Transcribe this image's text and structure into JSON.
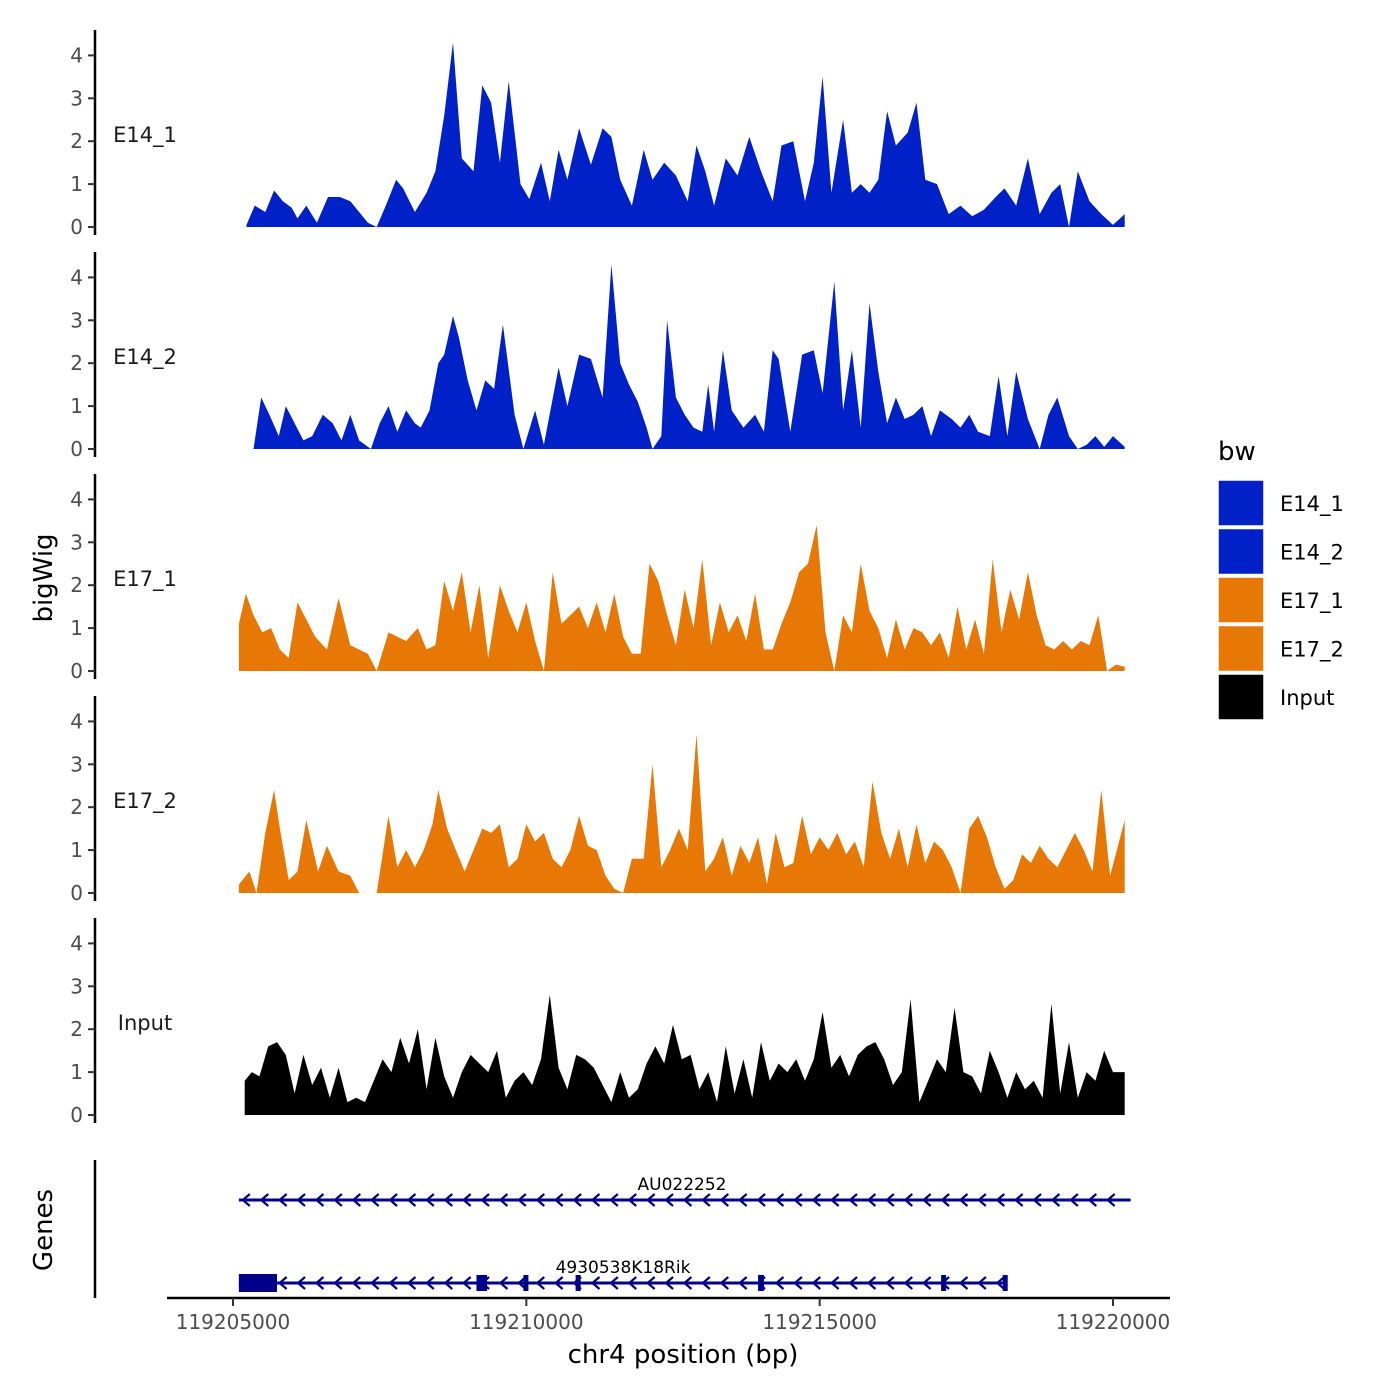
{
  "chart_data": {
    "type": "area",
    "title": "",
    "xlabel": "chr4 position (bp)",
    "ylabel": "bigWig",
    "genes_label": "Genes",
    "xlim": [
      119204800,
      119220600
    ],
    "xticks": [
      119205000,
      119210000,
      119215000,
      119220000
    ],
    "xtick_labels": [
      "119205000",
      "119210000",
      "119215000",
      "119220000"
    ],
    "ylim": [
      0,
      4.6
    ],
    "yticks": [
      0,
      1,
      2,
      3,
      4
    ],
    "ytick_labels": [
      "0",
      "1",
      "2",
      "3",
      "4"
    ],
    "legend": {
      "title": "bw",
      "position": "right",
      "entries": [
        {
          "label": "E14_1",
          "color": "#0020c8"
        },
        {
          "label": "E14_2",
          "color": "#0020c8"
        },
        {
          "label": "E17_1",
          "color": "#e87806"
        },
        {
          "label": "E17_2",
          "color": "#e87806"
        },
        {
          "label": "Input",
          "color": "#000000"
        }
      ]
    },
    "series": [
      {
        "name": "E14_1",
        "color": "#0020c8",
        "x": [
          119205230,
          119205370,
          119205550,
          119205700,
          119205850,
          119206000,
          119206100,
          119206250,
          119206430,
          119206620,
          119206820,
          119207000,
          119207300,
          119207450,
          119207620,
          119207780,
          119207900,
          119208100,
          119208300,
          119208450,
          119208600,
          119208750,
          119208900,
          119209100,
          119209250,
          119209400,
          119209550,
          119209700,
          119209900,
          119210050,
          119210250,
          119210400,
          119210550,
          119210700,
          119210900,
          119211100,
          119211300,
          119211450,
          119211600,
          119211800,
          119212000,
          119212150,
          119212350,
          119212550,
          119212750,
          119212900,
          119213050,
          119213200,
          119213400,
          119213600,
          119213800,
          119214000,
          119214200,
          119214350,
          119214550,
          119214750,
          119214900,
          119215050,
          119215200,
          119215400,
          119215550,
          119215700,
          119215850,
          119216000,
          119216150,
          119216300,
          119216500,
          119216650,
          119216800,
          119217000,
          119217200,
          119217400,
          119217600,
          119217800,
          119218000,
          119218150,
          119218350,
          119218550,
          119218750,
          119218950,
          119219100,
          119219250,
          119219400,
          119219600,
          119219800,
          119220000,
          119220200
        ],
        "values": [
          0.05,
          0.5,
          0.35,
          0.85,
          0.6,
          0.45,
          0.2,
          0.5,
          0.1,
          0.7,
          0.7,
          0.6,
          0.1,
          0.0,
          0.55,
          1.1,
          0.9,
          0.35,
          0.8,
          1.3,
          2.6,
          4.3,
          1.6,
          1.3,
          3.3,
          2.9,
          1.5,
          3.4,
          1.0,
          0.65,
          1.5,
          0.6,
          1.8,
          1.1,
          2.3,
          1.45,
          2.3,
          2.1,
          1.1,
          0.5,
          1.8,
          1.1,
          1.5,
          1.2,
          0.6,
          1.9,
          1.3,
          0.5,
          1.6,
          1.2,
          2.1,
          1.3,
          0.6,
          1.9,
          2.0,
          0.6,
          1.5,
          3.5,
          0.8,
          2.5,
          0.8,
          1.0,
          0.8,
          1.1,
          2.7,
          1.9,
          2.2,
          2.9,
          1.1,
          1.0,
          0.3,
          0.5,
          0.25,
          0.4,
          0.7,
          0.9,
          0.5,
          1.6,
          0.3,
          0.8,
          1.0,
          0.0,
          1.3,
          0.6,
          0.3,
          0.05,
          0.3
        ]
      },
      {
        "name": "E14_2",
        "color": "#0020c8",
        "x": [
          119205350,
          119205480,
          119205620,
          119205780,
          119205900,
          119206050,
          119206200,
          119206350,
          119206530,
          119206700,
          119206850,
          119207000,
          119207150,
          119207350,
          119207500,
          119207650,
          119207800,
          119207950,
          119208100,
          119208200,
          119208350,
          119208500,
          119208600,
          119208750,
          119208850,
          119209000,
          119209150,
          119209300,
          119209450,
          119209600,
          119209800,
          119209950,
          119210150,
          119210300,
          119210550,
          119210700,
          119210900,
          119211100,
          119211300,
          119211450,
          119211600,
          119211750,
          119211900,
          119212050,
          119212150,
          119212300,
          119212400,
          119212550,
          119212700,
          119212850,
          119213000,
          119213100,
          119213200,
          119213350,
          119213500,
          119213700,
          119213900,
          119214050,
          119214200,
          119214300,
          119214500,
          119214700,
          119214900,
          119215050,
          119215250,
          119215400,
          119215550,
          119215700,
          119215850,
          119216000,
          119216150,
          119216300,
          119216450,
          119216600,
          119216750,
          119216900,
          119217050,
          119217250,
          119217400,
          119217550,
          119217700,
          119217900,
          119218050,
          119218200,
          119218350,
          119218550,
          119218750,
          119218900,
          119219050,
          119219250,
          119219400,
          119219550,
          119219700,
          119219850,
          119220000,
          119220200
        ],
        "values": [
          0.0,
          1.2,
          0.8,
          0.3,
          1.0,
          0.6,
          0.2,
          0.3,
          0.8,
          0.6,
          0.2,
          0.8,
          0.2,
          0.0,
          0.6,
          1.0,
          0.4,
          0.9,
          0.6,
          0.5,
          0.9,
          2.0,
          2.2,
          3.1,
          2.6,
          1.6,
          0.9,
          1.6,
          1.4,
          2.9,
          0.8,
          0.0,
          0.9,
          0.1,
          1.9,
          1.0,
          2.2,
          2.1,
          1.2,
          4.3,
          2.0,
          1.5,
          1.1,
          0.5,
          0.0,
          0.3,
          3.0,
          1.2,
          0.8,
          0.5,
          0.4,
          1.5,
          0.4,
          2.3,
          0.9,
          0.5,
          0.8,
          0.4,
          2.3,
          2.1,
          0.4,
          2.2,
          2.3,
          1.3,
          3.9,
          0.9,
          2.3,
          0.5,
          3.4,
          1.8,
          0.6,
          1.2,
          0.7,
          0.8,
          1.0,
          0.3,
          0.9,
          0.7,
          0.5,
          0.8,
          0.4,
          0.3,
          1.7,
          0.3,
          1.8,
          0.7,
          0.0,
          0.8,
          1.2,
          0.3,
          0.0,
          0.1,
          0.3,
          0.05,
          0.3,
          0.05
        ]
      },
      {
        "name": "E17_1",
        "color": "#e87806",
        "x": [
          119205100,
          119205220,
          119205350,
          119205500,
          119205650,
          119205800,
          119205950,
          119206100,
          119206250,
          119206400,
          119206600,
          119206800,
          119207000,
          119207150,
          119207300,
          119207450,
          119207650,
          119207800,
          119207950,
          119208150,
          119208300,
          119208450,
          119208600,
          119208750,
          119208900,
          119209050,
          119209200,
          119209350,
          119209550,
          119209700,
          119209850,
          119210000,
          119210150,
          119210300,
          119210450,
          119210600,
          119210750,
          119210900,
          119211050,
          119211200,
          119211350,
          119211500,
          119211650,
          119211800,
          119211950,
          119212100,
          119212250,
          119212400,
          119212550,
          119212700,
          119212850,
          119213000,
          119213150,
          119213300,
          119213450,
          119213600,
          119213750,
          119213900,
          119214050,
          119214200,
          119214350,
          119214500,
          119214650,
          119214800,
          119214950,
          119215100,
          119215250,
          119215400,
          119215550,
          119215700,
          119215850,
          119216000,
          119216150,
          119216300,
          119216450,
          119216600,
          119216750,
          119216900,
          119217050,
          119217200,
          119217350,
          119217500,
          119217650,
          119217800,
          119217950,
          119218100,
          119218250,
          119218400,
          119218550,
          119218700,
          119218850,
          119219000,
          119219150,
          119219300,
          119219450,
          119219600,
          119219750,
          119219900,
          119220050,
          119220200
        ],
        "values": [
          1.1,
          1.8,
          1.3,
          0.9,
          1.0,
          0.5,
          0.3,
          1.6,
          1.2,
          0.8,
          0.5,
          1.7,
          0.6,
          0.5,
          0.4,
          0.0,
          0.9,
          0.8,
          0.7,
          1.0,
          0.5,
          0.6,
          2.1,
          1.4,
          2.3,
          0.9,
          2.0,
          0.3,
          2.0,
          1.4,
          0.9,
          1.6,
          0.7,
          0.0,
          2.3,
          1.1,
          1.3,
          1.5,
          1.0,
          1.6,
          0.9,
          1.8,
          0.8,
          0.4,
          0.4,
          2.5,
          2.1,
          1.3,
          0.6,
          1.9,
          1.0,
          2.6,
          0.6,
          1.6,
          0.9,
          1.3,
          0.7,
          1.8,
          0.5,
          0.5,
          1.1,
          1.6,
          2.3,
          2.5,
          3.4,
          0.9,
          0.0,
          1.3,
          0.9,
          2.5,
          1.4,
          1.0,
          0.3,
          1.2,
          0.5,
          1.0,
          0.9,
          0.6,
          0.9,
          0.3,
          1.5,
          0.5,
          1.2,
          0.4,
          2.6,
          0.9,
          1.9,
          1.2,
          2.3,
          1.3,
          0.6,
          0.5,
          0.7,
          0.5,
          0.7,
          0.6,
          1.3,
          0.0,
          0.15,
          0.1
        ]
      },
      {
        "name": "E17_2",
        "color": "#e87806",
        "x": [
          119205100,
          119205280,
          119205400,
          119205550,
          119205700,
          119205800,
          119205950,
          119206100,
          119206250,
          119206450,
          119206600,
          119206800,
          119207000,
          119207150,
          119207250,
          119207450,
          119207650,
          119207800,
          119207950,
          119208100,
          119208250,
          119208400,
          119208500,
          119208650,
          119208800,
          119208950,
          119209100,
          119209250,
          119209400,
          119209550,
          119209700,
          119209850,
          119210000,
          119210150,
          119210300,
          119210450,
          119210600,
          119210750,
          119210900,
          119211050,
          119211200,
          119211350,
          119211500,
          119211650,
          119211800,
          119212000,
          119212150,
          119212300,
          119212450,
          119212600,
          119212750,
          119212900,
          119213050,
          119213200,
          119213350,
          119213500,
          119213650,
          119213800,
          119213950,
          119214100,
          119214250,
          119214400,
          119214550,
          119214700,
          119214850,
          119215000,
          119215150,
          119215300,
          119215450,
          119215600,
          119215750,
          119215900,
          119216050,
          119216200,
          119216350,
          119216500,
          119216650,
          119216800,
          119216950,
          119217100,
          119217250,
          119217400,
          119217550,
          119217700,
          119217850,
          119218000,
          119218150,
          119218300,
          119218450,
          119218600,
          119218750,
          119218900,
          119219050,
          119219200,
          119219350,
          119219500,
          119219650,
          119219800,
          119219950,
          119220200
        ],
        "values": [
          0.2,
          0.5,
          0.0,
          1.4,
          2.4,
          1.5,
          0.3,
          0.5,
          1.7,
          0.5,
          1.1,
          0.5,
          0.4,
          0.0,
          0.0,
          0.0,
          1.8,
          0.6,
          1.0,
          0.6,
          1.0,
          1.6,
          2.4,
          1.5,
          1.0,
          0.5,
          1.0,
          1.5,
          1.4,
          1.6,
          0.6,
          0.8,
          1.6,
          1.2,
          1.4,
          0.8,
          0.6,
          1.0,
          1.8,
          1.1,
          1.0,
          0.4,
          0.1,
          0.0,
          0.8,
          0.8,
          3.0,
          0.6,
          1.0,
          1.5,
          1.0,
          3.7,
          0.5,
          0.8,
          1.3,
          0.4,
          1.1,
          0.7,
          1.3,
          0.2,
          1.4,
          0.6,
          0.7,
          1.8,
          0.9,
          1.3,
          1.0,
          1.4,
          0.9,
          1.2,
          0.6,
          2.6,
          1.4,
          0.8,
          1.5,
          0.6,
          1.6,
          0.7,
          1.2,
          1.0,
          0.6,
          0.0,
          1.5,
          1.8,
          1.3,
          0.6,
          0.1,
          0.3,
          0.9,
          0.7,
          1.1,
          0.8,
          0.6,
          1.0,
          1.4,
          1.0,
          0.5,
          2.4,
          0.4,
          1.7
        ]
      },
      {
        "name": "Input",
        "color": "#000000",
        "x": [
          119205200,
          119205320,
          119205450,
          119205600,
          119205750,
          119205900,
          119206050,
          119206200,
          119206350,
          119206500,
          119206650,
          119206800,
          119206950,
          119207100,
          119207250,
          119207400,
          119207550,
          119207700,
          119207850,
          119208000,
          119208150,
          119208300,
          119208450,
          119208600,
          119208750,
          119208900,
          119209050,
          119209200,
          119209350,
          119209500,
          119209650,
          119209800,
          119209950,
          119210100,
          119210250,
          119210400,
          119210550,
          119210700,
          119210850,
          119211000,
          119211150,
          119211300,
          119211450,
          119211600,
          119211750,
          119211900,
          119212050,
          119212200,
          119212350,
          119212500,
          119212650,
          119212800,
          119212950,
          119213100,
          119213250,
          119213400,
          119213550,
          119213700,
          119213850,
          119214000,
          119214150,
          119214300,
          119214450,
          119214600,
          119214750,
          119214900,
          119215050,
          119215200,
          119215350,
          119215500,
          119215650,
          119215800,
          119215950,
          119216100,
          119216250,
          119216400,
          119216550,
          119216700,
          119216850,
          119217000,
          119217150,
          119217300,
          119217450,
          119217600,
          119217750,
          119217900,
          119218050,
          119218200,
          119218350,
          119218500,
          119218650,
          119218800,
          119218950,
          119219100,
          119219250,
          119219400,
          119219550,
          119219700,
          119219850,
          119220000,
          119220200
        ],
        "values": [
          0.8,
          1.0,
          0.9,
          1.6,
          1.7,
          1.4,
          0.5,
          1.4,
          0.7,
          1.1,
          0.4,
          1.1,
          0.3,
          0.4,
          0.3,
          0.8,
          1.3,
          1.0,
          1.8,
          1.2,
          2.0,
          0.6,
          1.8,
          0.9,
          0.4,
          1.0,
          1.4,
          1.2,
          1.0,
          1.5,
          0.4,
          0.8,
          1.0,
          0.7,
          1.3,
          2.8,
          1.1,
          0.6,
          1.4,
          1.3,
          1.1,
          0.7,
          0.3,
          1.0,
          0.4,
          0.6,
          1.2,
          1.6,
          1.2,
          2.1,
          1.3,
          1.4,
          0.6,
          1.0,
          0.3,
          1.6,
          0.5,
          1.3,
          0.4,
          1.7,
          0.8,
          1.2,
          1.0,
          1.3,
          0.8,
          1.3,
          2.4,
          1.1,
          1.4,
          0.9,
          1.4,
          1.6,
          1.7,
          1.3,
          0.7,
          1.0,
          2.7,
          0.3,
          0.8,
          1.3,
          1.0,
          2.5,
          1.0,
          0.9,
          0.5,
          1.5,
          1.0,
          0.4,
          1.0,
          0.6,
          0.8,
          0.4,
          2.6,
          0.5,
          1.7,
          0.4,
          1.0,
          0.8,
          1.5,
          1.0,
          1.0
        ]
      }
    ],
    "genes": [
      {
        "name": "AU022252",
        "strand": "-",
        "start": 119205100,
        "end": 119220300,
        "exons": []
      },
      {
        "name": "4930538K18Rik",
        "strand": "-",
        "start": 119205100,
        "end": 119218200,
        "exons": [
          [
            119205100,
            119205750
          ],
          [
            119209150,
            119209330
          ],
          [
            119209950,
            119210020
          ],
          [
            119210840,
            119210900
          ],
          [
            119213950,
            119214050
          ],
          [
            119217070,
            119217120
          ],
          [
            119218120,
            119218200
          ]
        ]
      }
    ]
  }
}
